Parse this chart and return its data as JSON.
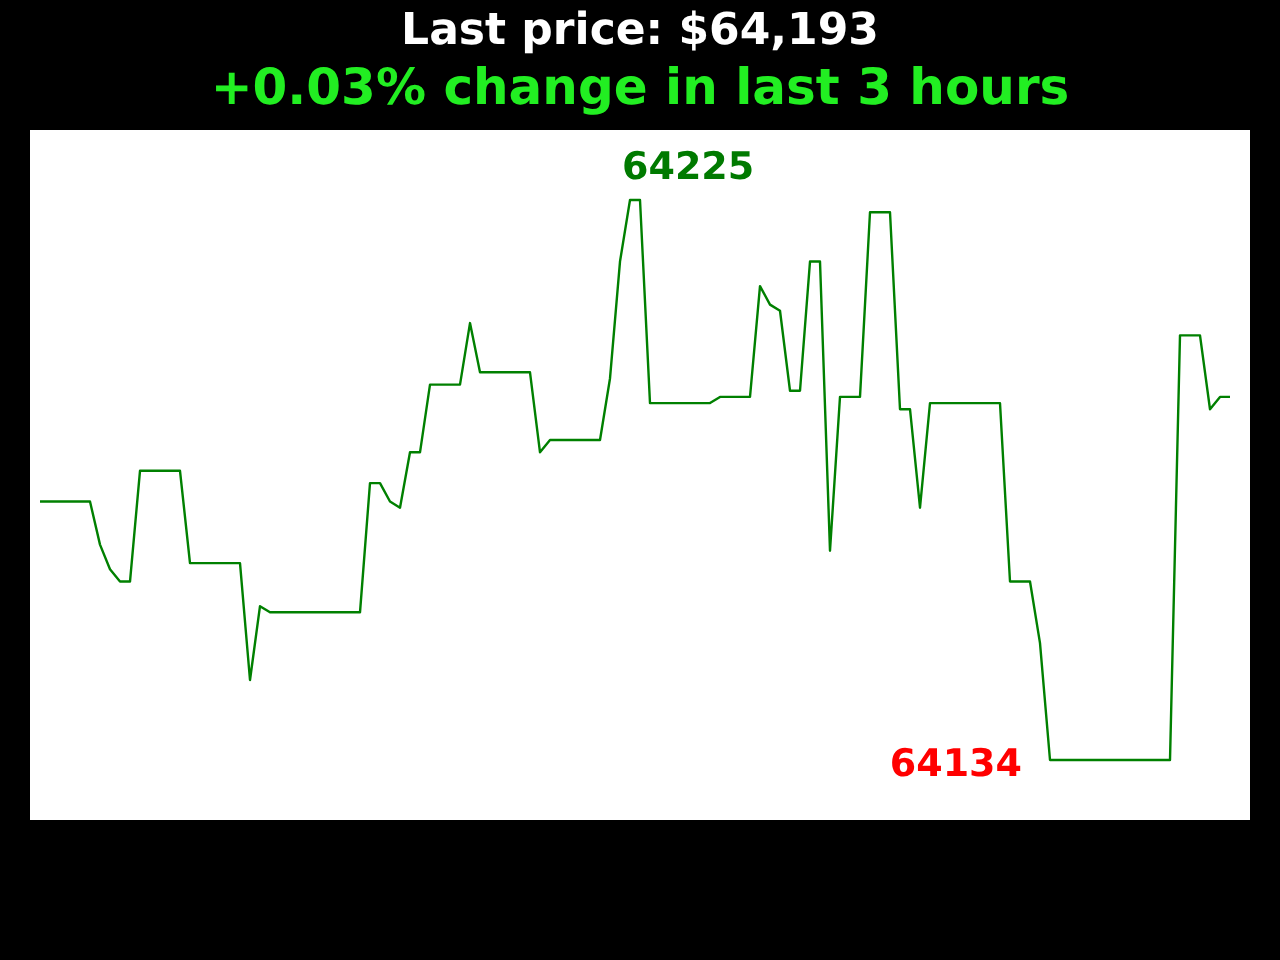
{
  "chart_data": {
    "type": "line",
    "title": "Last price: $64,193",
    "subtitle": "+0.03% change in last 3 hours",
    "categories": [
      null,
      null,
      null,
      null,
      null,
      null,
      null,
      null,
      null,
      null,
      null,
      null,
      null,
      null,
      null,
      null,
      null,
      null,
      null,
      null,
      null,
      null,
      null,
      null,
      null,
      null,
      null,
      null,
      null,
      null,
      null,
      null,
      null,
      null,
      null,
      null,
      null,
      null,
      null,
      null,
      null,
      null,
      null,
      null,
      null,
      null,
      null,
      null,
      null,
      null,
      null,
      null,
      null,
      null,
      null,
      null,
      null,
      null,
      null,
      null,
      null,
      null,
      null,
      null,
      null,
      null,
      null,
      null,
      null,
      null,
      null,
      null,
      null,
      null,
      null,
      null,
      null,
      null,
      null,
      null,
      null,
      null,
      null,
      null,
      null,
      null,
      null,
      null,
      null,
      null,
      null,
      null,
      null,
      null,
      null,
      null,
      null,
      null,
      null,
      null,
      null,
      null,
      null,
      null,
      null,
      null,
      null,
      null,
      null,
      null,
      null,
      null,
      null,
      null,
      null,
      null,
      null,
      null,
      null,
      null
    ],
    "color": "#008000",
    "values": [
      64176,
      64176,
      64176,
      64176,
      64176,
      64176,
      64169,
      64165,
      64163,
      64163,
      64181,
      64181,
      64181,
      64181,
      64181,
      64166,
      64166,
      64166,
      64166,
      64166,
      64166,
      64147,
      64159,
      64158,
      64158,
      64158,
      64158,
      64158,
      64158,
      64158,
      64158,
      64158,
      64158,
      64179,
      64179,
      64176,
      64175,
      64184,
      64184,
      64195,
      64195,
      64195,
      64195,
      64205,
      64197,
      64197,
      64197,
      64197,
      64197,
      64197,
      64184,
      64186,
      64186,
      64186,
      64186,
      64186,
      64186,
      64196,
      64215,
      64225,
      64225,
      64192,
      64192,
      64192,
      64192,
      64192,
      64192,
      64192,
      64193,
      64193,
      64193,
      64193,
      64211,
      64208,
      64207,
      64194,
      64194,
      64215,
      64215,
      64168,
      64193,
      64193,
      64193,
      64223,
      64223,
      64223,
      64191,
      64191,
      64175,
      64192,
      64192,
      64192,
      64192,
      64192,
      64192,
      64192,
      64192,
      64163,
      64163,
      64163,
      64153,
      64134,
      64134,
      64134,
      64134,
      64134,
      64134,
      64134,
      64134,
      64134,
      64134,
      64134,
      64134,
      64134,
      64203,
      64203,
      64203,
      64191,
      64193,
      64193
    ],
    "value_labels": [
      null,
      null,
      null,
      null,
      null,
      null,
      null,
      null,
      null,
      null,
      null,
      null,
      null,
      null,
      null,
      null,
      null,
      null,
      null,
      null,
      null,
      null,
      null,
      null,
      null,
      null,
      null,
      null,
      null,
      null,
      null,
      null,
      null,
      null,
      null,
      null,
      null,
      null,
      null,
      null,
      null,
      null,
      null,
      null,
      null,
      null,
      null,
      null,
      null,
      null,
      null,
      null,
      null,
      null,
      null,
      null,
      null,
      null,
      null,
      "64225",
      null,
      null,
      null,
      null,
      null,
      null,
      null,
      null,
      null,
      null,
      null,
      null,
      null,
      null,
      null,
      null,
      null,
      null,
      null,
      null,
      null,
      null,
      null,
      null,
      null,
      null,
      null,
      null,
      null,
      null,
      null,
      null,
      null,
      null,
      null,
      null,
      null,
      null,
      null,
      null,
      null,
      "64134",
      null,
      null,
      null,
      null,
      null,
      null,
      null,
      null,
      null,
      null,
      null,
      null,
      null,
      null,
      null,
      null,
      null,
      null
    ]
  }
}
